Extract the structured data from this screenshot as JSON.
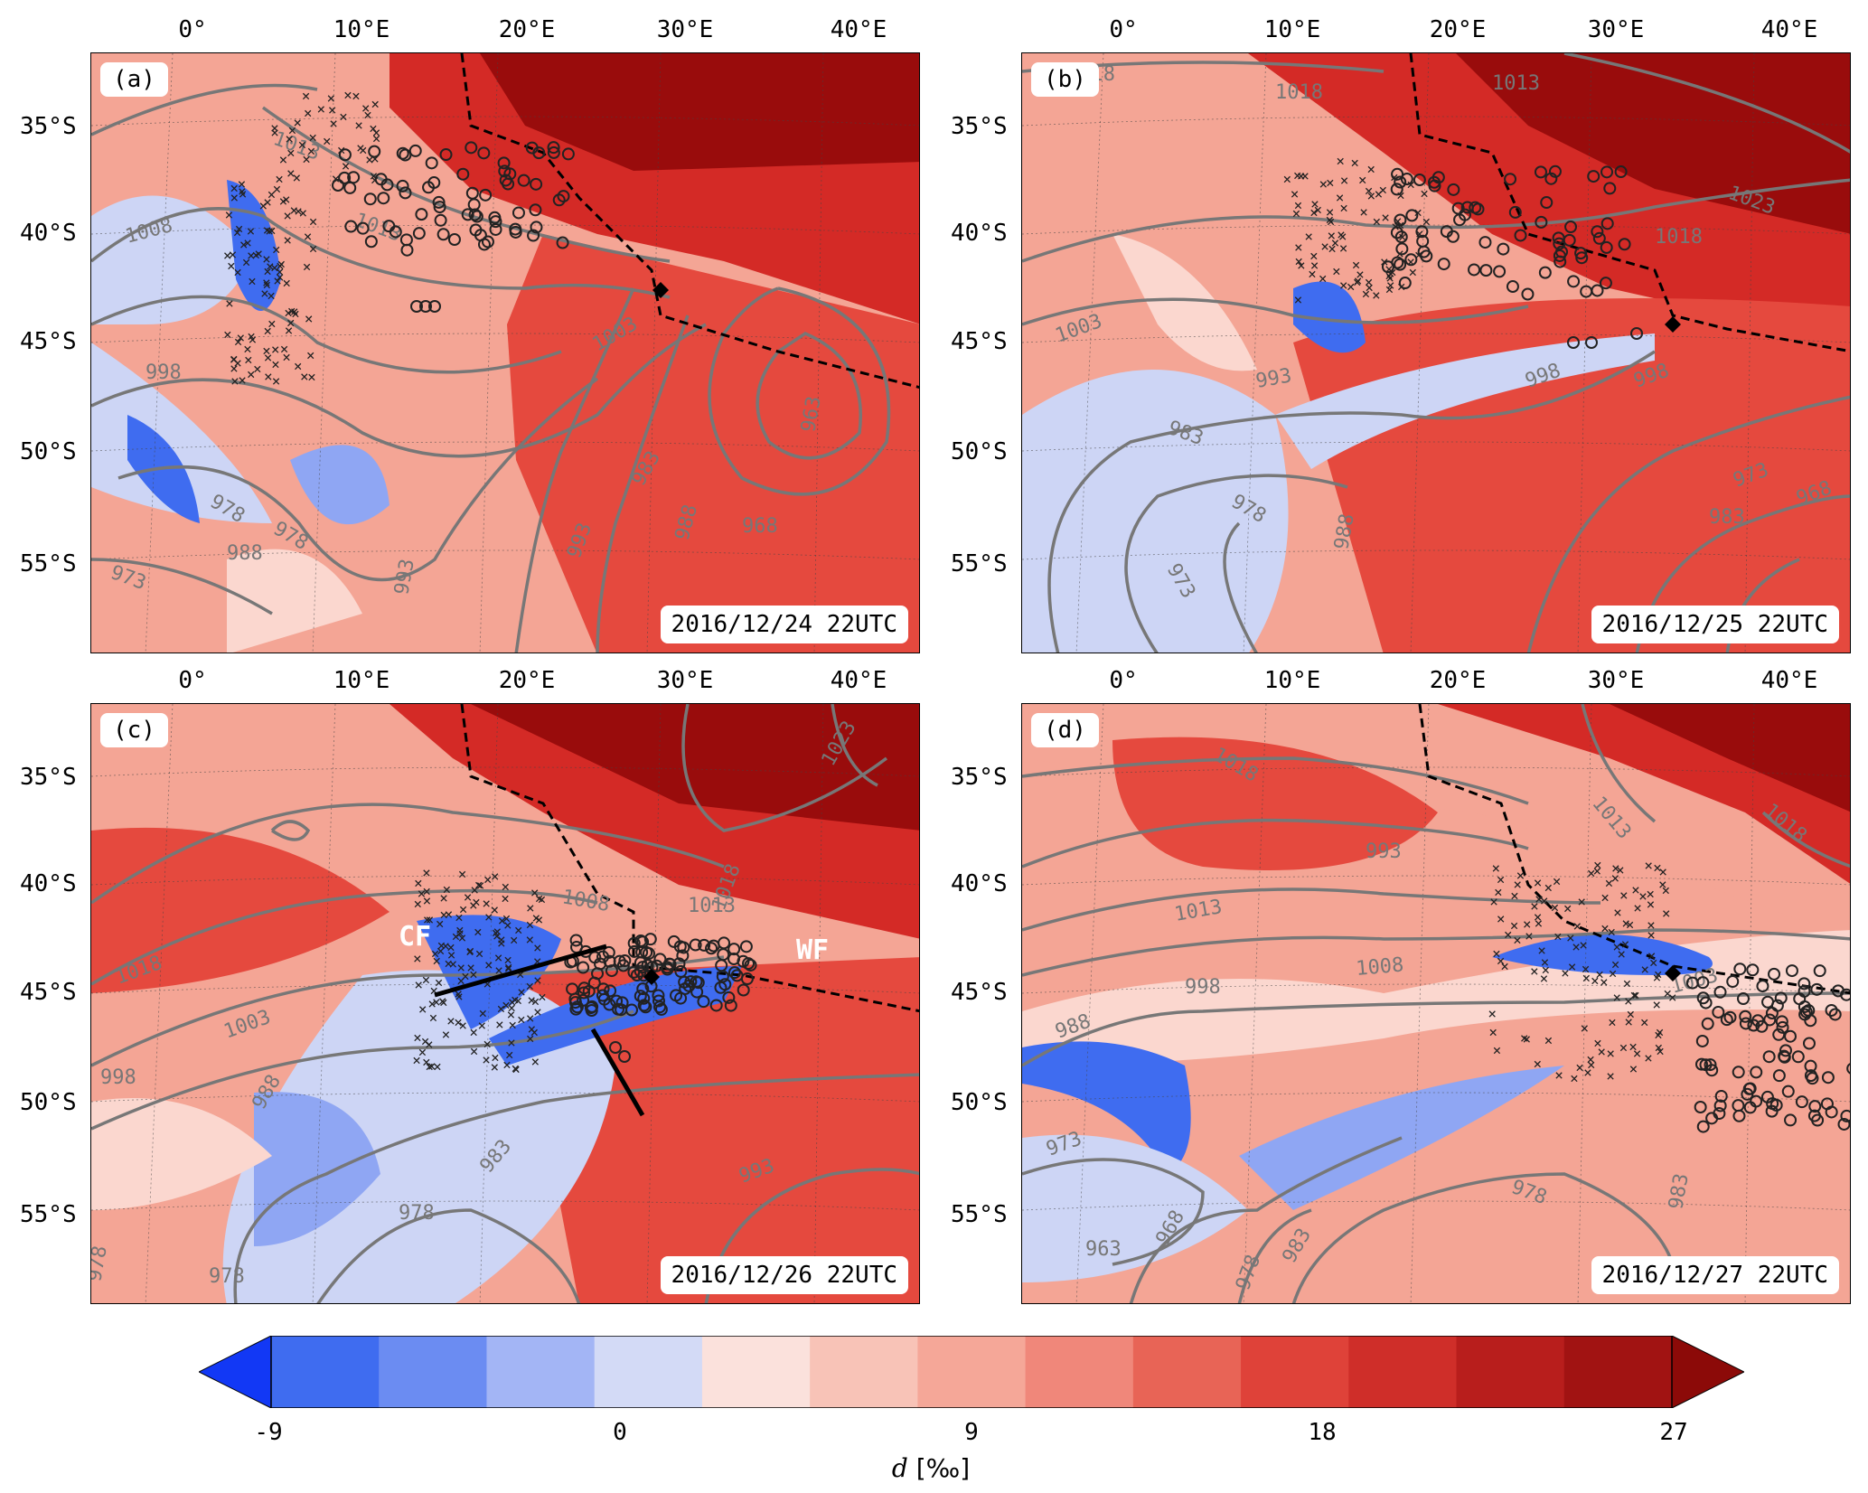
{
  "colors": {
    "dark_red": "#990c0c",
    "red": "#d42a26",
    "mid_red": "#e5493e",
    "light_red": "#f4a595",
    "pale_red": "#fbd7cf",
    "pale_blue": "#cdd5f5",
    "light_blue": "#8fa6f3",
    "blue": "#3f6cf0",
    "contour": "#777777"
  },
  "lon_labels": [
    "0°",
    "10°E",
    "20°E",
    "30°E",
    "40°E"
  ],
  "lat_labels": [
    "35°S",
    "40°S",
    "45°S",
    "50°S",
    "55°S"
  ],
  "panels": [
    {
      "label": "(a)",
      "datetime": "2016/12/24 22UTC",
      "contour_labels": [
        "1013",
        "1013",
        "1008",
        "1003",
        "998",
        "993",
        "988",
        "983",
        "978",
        "973",
        "978",
        "968",
        "963",
        "993",
        "988"
      ]
    },
    {
      "label": "(b)",
      "datetime": "2016/12/25 22UTC",
      "contour_labels": [
        "1018",
        "1018",
        "1013",
        "1023",
        "1018",
        "1003",
        "993",
        "998",
        "983",
        "978",
        "973",
        "988",
        "983",
        "973",
        "968",
        "998"
      ]
    },
    {
      "label": "(c)",
      "datetime": "2016/12/26 22UTC",
      "contour_labels": [
        "1018",
        "1023",
        "1008",
        "1013",
        "1018",
        "1003",
        "998",
        "988",
        "983",
        "978",
        "978",
        "978",
        "993"
      ],
      "front_labels": [
        "CF",
        "WF"
      ]
    },
    {
      "label": "(d)",
      "datetime": "2016/12/27 22UTC",
      "contour_labels": [
        "1018",
        "1013",
        "1018",
        "1013",
        "1008",
        "1003",
        "998",
        "993",
        "988",
        "973",
        "963",
        "968",
        "978",
        "983",
        "978",
        "983"
      ]
    }
  ],
  "colorbar": {
    "tick_labels": [
      "-9",
      "0",
      "9",
      "18",
      "27"
    ],
    "label_symbol": "d",
    "label_unit": "[‰]",
    "colors": [
      "#3f6cf0",
      "#6b8cf2",
      "#a3b5f5",
      "#d3daf6",
      "#fbe1dc",
      "#f8c3b7",
      "#f5a798",
      "#f0877a",
      "#e86456",
      "#df4239",
      "#cf2e29",
      "#b81e1c",
      "#a11312"
    ],
    "extend_low_color": "#1238f5",
    "extend_high_color": "#8c0a08"
  }
}
